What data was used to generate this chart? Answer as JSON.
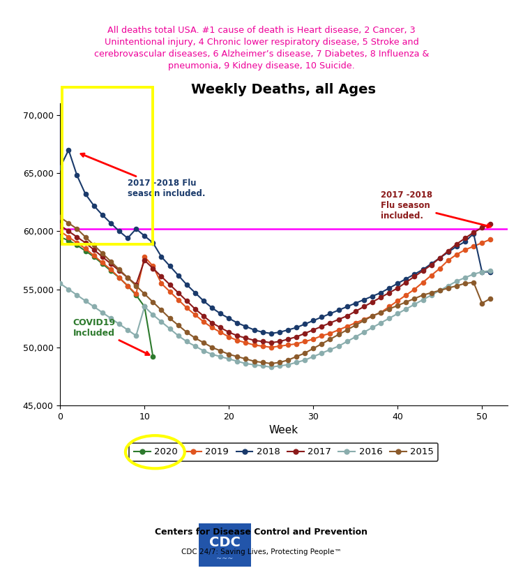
{
  "title": "Weekly Deaths, all Ages",
  "subtitle": "All deaths total USA. #1 cause of death is Heart disease, 2 Cancer, 3\nUnintentional injury, 4 Chronic lower respiratory disease, 5 Stroke and\ncerebrovascular diseases, 6 Alzheimer’s disease, 7 Diabetes, 8 Influenza &\npneumonia, 9 Kidney disease, 10 Suicide.",
  "xlabel": "Week",
  "xlim": [
    0,
    53
  ],
  "ylim": [
    45000,
    71000
  ],
  "yticks": [
    45000,
    50000,
    55000,
    60000,
    65000,
    70000
  ],
  "xticks": [
    0,
    10,
    20,
    30,
    40,
    50
  ],
  "hline_y": 60200,
  "hline_color": "#FF00FF",
  "subtitle_color": "#EE0099",
  "years": [
    "2020",
    "2019",
    "2018",
    "2017",
    "2016",
    "2015"
  ],
  "colors": [
    "#2d7a2d",
    "#e05520",
    "#1a3a6b",
    "#8B1A1A",
    "#8aadad",
    "#8B5A2B"
  ],
  "data_2020": [
    59500,
    59200,
    58800,
    58300,
    57800,
    57200,
    56600,
    56000,
    55300,
    54500,
    53500,
    49200,
    null,
    null,
    null,
    null,
    null,
    null,
    null,
    null,
    null,
    null,
    null,
    null,
    null,
    null,
    null,
    null,
    null,
    null,
    null,
    null,
    null,
    null,
    null,
    null,
    null,
    null,
    null,
    null,
    null,
    null,
    null,
    null,
    null,
    null,
    null,
    null,
    null,
    null,
    null,
    null
  ],
  "data_2019": [
    60000,
    59500,
    59000,
    58500,
    57900,
    57300,
    56700,
    56000,
    55300,
    54600,
    57800,
    57000,
    55500,
    54800,
    54100,
    53400,
    52800,
    52200,
    51700,
    51300,
    50900,
    50600,
    50400,
    50200,
    50100,
    50000,
    50100,
    50200,
    50300,
    50500,
    50700,
    51000,
    51200,
    51500,
    51800,
    52100,
    52400,
    52700,
    53000,
    53500,
    54000,
    54500,
    55000,
    55600,
    56200,
    56800,
    57500,
    58000,
    58400,
    58700,
    59000,
    59300
  ],
  "data_2018": [
    65500,
    67000,
    64800,
    63200,
    62200,
    61400,
    60700,
    60000,
    59400,
    60200,
    59600,
    59000,
    57800,
    57000,
    56200,
    55400,
    54700,
    54000,
    53400,
    52900,
    52500,
    52100,
    51800,
    51500,
    51300,
    51200,
    51300,
    51500,
    51700,
    52000,
    52300,
    52600,
    52900,
    53200,
    53500,
    53800,
    54100,
    54400,
    54700,
    55100,
    55500,
    55900,
    56300,
    56700,
    57200,
    57700,
    58200,
    58700,
    59100,
    59800,
    56500,
    56500
  ],
  "data_2017": [
    60500,
    60000,
    59500,
    59000,
    58400,
    57800,
    57200,
    56600,
    56000,
    55400,
    57500,
    56800,
    56100,
    55400,
    54700,
    54000,
    53300,
    52700,
    52100,
    51700,
    51300,
    51000,
    50800,
    50600,
    50500,
    50400,
    50500,
    50700,
    50900,
    51200,
    51500,
    51800,
    52100,
    52400,
    52700,
    53100,
    53500,
    53900,
    54300,
    54700,
    55100,
    55600,
    56100,
    56600,
    57100,
    57700,
    58300,
    58900,
    59400,
    59900,
    60300,
    60600
  ],
  "data_2016": [
    55500,
    55000,
    54500,
    54000,
    53500,
    53000,
    52500,
    52000,
    51500,
    51000,
    53500,
    52800,
    52200,
    51600,
    51000,
    50500,
    50100,
    49700,
    49400,
    49200,
    49000,
    48800,
    48600,
    48500,
    48400,
    48300,
    48400,
    48500,
    48700,
    48900,
    49200,
    49500,
    49800,
    50100,
    50500,
    50900,
    51300,
    51700,
    52100,
    52500,
    52900,
    53300,
    53700,
    54100,
    54500,
    54900,
    55300,
    55700,
    56000,
    56300,
    56500,
    56600
  ],
  "data_2015": [
    61200,
    60700,
    60200,
    59500,
    58800,
    58100,
    57400,
    56700,
    56000,
    55300,
    54600,
    53900,
    53200,
    52500,
    51900,
    51300,
    50800,
    50400,
    50000,
    49700,
    49400,
    49200,
    49000,
    48800,
    48700,
    48600,
    48700,
    48900,
    49200,
    49500,
    49900,
    50300,
    50700,
    51100,
    51500,
    51900,
    52300,
    52700,
    53000,
    53300,
    53600,
    53900,
    54200,
    54500,
    54700,
    54900,
    55100,
    55300,
    55500,
    55600,
    53800,
    54200
  ]
}
